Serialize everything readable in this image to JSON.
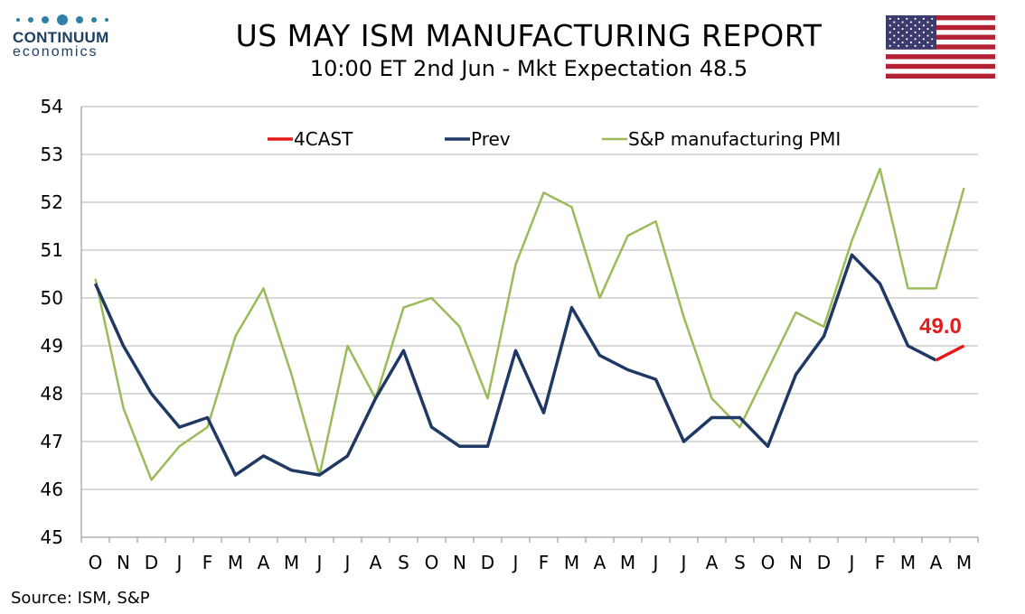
{
  "logo": {
    "name": "CONTINUUM",
    "sub": "economics"
  },
  "header": {
    "title": "US MAY ISM MANUFACTURING REPORT",
    "subtitle": "10:00 ET 2nd Jun - Mkt Expectation 48.5"
  },
  "source": "Source: ISM, S&P",
  "colors": {
    "forecast": "#e31b1b",
    "prev": "#1f3864",
    "pmi": "#9bbb59",
    "grid": "#b3b3b3"
  },
  "chart_data": {
    "type": "line",
    "categories": [
      "O",
      "N",
      "D",
      "J",
      "F",
      "M",
      "A",
      "M",
      "J",
      "J",
      "A",
      "S",
      "O",
      "N",
      "D",
      "J",
      "F",
      "M",
      "A",
      "M",
      "J",
      "J",
      "A",
      "S",
      "O",
      "N",
      "D",
      "J",
      "F",
      "M",
      "A",
      "M"
    ],
    "ylim": [
      45,
      54
    ],
    "yticks": [
      45,
      46,
      47,
      48,
      49,
      50,
      51,
      52,
      53,
      54
    ],
    "legend_position": "top",
    "grid": true,
    "series": [
      {
        "name": "4CAST",
        "color": "#e31b1b",
        "values": [
          null,
          null,
          null,
          null,
          null,
          null,
          null,
          null,
          null,
          null,
          null,
          null,
          null,
          null,
          null,
          null,
          null,
          null,
          null,
          null,
          null,
          null,
          null,
          null,
          null,
          null,
          null,
          null,
          null,
          null,
          48.7,
          49.0
        ]
      },
      {
        "name": "Prev",
        "color": "#1f3864",
        "values": [
          50.3,
          49.0,
          48.0,
          47.3,
          47.5,
          46.3,
          46.7,
          46.4,
          46.3,
          46.7,
          47.9,
          48.9,
          47.3,
          46.9,
          46.9,
          48.9,
          47.6,
          49.8,
          48.8,
          48.5,
          48.3,
          47.0,
          47.5,
          47.5,
          46.9,
          48.4,
          49.2,
          50.9,
          50.3,
          49.0,
          48.7,
          null
        ]
      },
      {
        "name": "S&P manufacturing PMI",
        "color": "#9bbb59",
        "values": [
          50.4,
          47.7,
          46.2,
          46.9,
          47.3,
          49.2,
          50.2,
          48.4,
          46.3,
          49.0,
          47.9,
          49.8,
          50.0,
          49.4,
          47.9,
          50.7,
          52.2,
          51.9,
          50.0,
          51.3,
          51.6,
          49.6,
          47.9,
          47.3,
          48.5,
          49.7,
          49.4,
          51.2,
          52.7,
          50.2,
          50.2,
          52.3
        ]
      }
    ],
    "annotations": [
      {
        "text": "49.0",
        "category_index": 31,
        "value": 49.0,
        "color": "#e31b1b"
      }
    ]
  }
}
